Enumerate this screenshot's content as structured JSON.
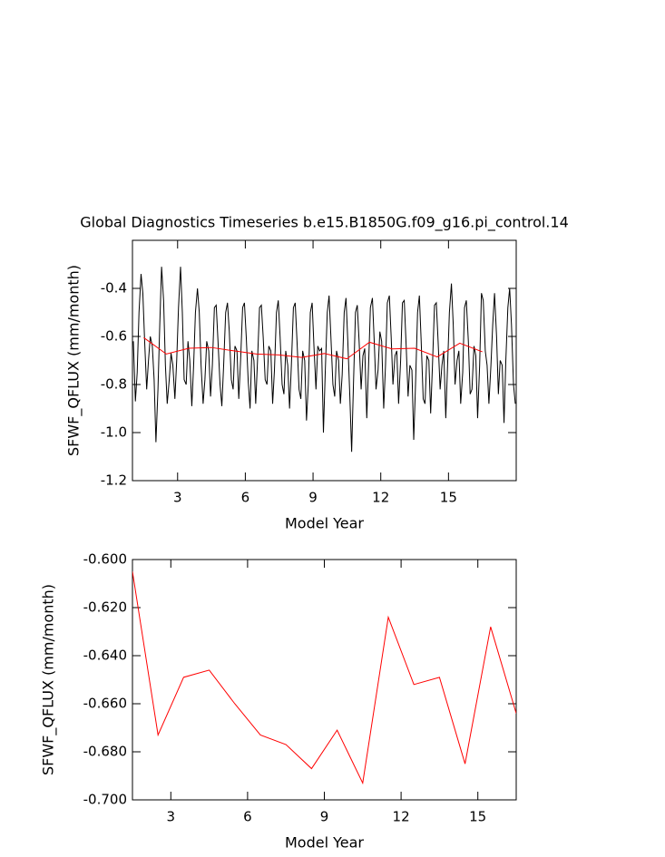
{
  "chart_data": [
    {
      "type": "line",
      "title": "Global Diagnostics Timeseries b.e15.B1850G.f09_g16.pi_control.14",
      "xlabel": "Model Year",
      "ylabel": "SFWF_QFLUX (mm/month)",
      "xlim": [
        1,
        18
      ],
      "ylim": [
        -1.2,
        -0.2
      ],
      "xticks": [
        3,
        6,
        9,
        12,
        15
      ],
      "yticks": [
        -1.2,
        {
          "value": -1,
          "label": "-1.0"
        },
        -0.8,
        -0.6,
        -0.4
      ],
      "series": [
        {
          "color": "#000000",
          "x": [
            1.04,
            1.13,
            1.21,
            1.29,
            1.38,
            1.46,
            1.54,
            1.63,
            1.71,
            1.79,
            1.88,
            1.96,
            2.04,
            2.13,
            2.21,
            2.29,
            2.38,
            2.46,
            2.54,
            2.63,
            2.71,
            2.79,
            2.88,
            2.96,
            3.04,
            3.13,
            3.21,
            3.29,
            3.38,
            3.46,
            3.54,
            3.63,
            3.71,
            3.79,
            3.88,
            3.96,
            4.04,
            4.13,
            4.21,
            4.29,
            4.38,
            4.46,
            4.54,
            4.63,
            4.71,
            4.79,
            4.88,
            4.96,
            5.04,
            5.13,
            5.21,
            5.29,
            5.38,
            5.46,
            5.54,
            5.63,
            5.71,
            5.79,
            5.88,
            5.96,
            6.04,
            6.13,
            6.21,
            6.29,
            6.38,
            6.46,
            6.54,
            6.63,
            6.71,
            6.79,
            6.88,
            6.96,
            7.04,
            7.13,
            7.21,
            7.29,
            7.38,
            7.46,
            7.54,
            7.63,
            7.71,
            7.79,
            7.88,
            7.96,
            8.04,
            8.13,
            8.21,
            8.29,
            8.38,
            8.46,
            8.54,
            8.63,
            8.71,
            8.79,
            8.88,
            8.96,
            9.04,
            9.13,
            9.21,
            9.29,
            9.38,
            9.46,
            9.54,
            9.63,
            9.71,
            9.79,
            9.88,
            9.96,
            10.04,
            10.13,
            10.21,
            10.29,
            10.38,
            10.46,
            10.54,
            10.63,
            10.71,
            10.79,
            10.88,
            10.96,
            11.04,
            11.13,
            11.21,
            11.29,
            11.38,
            11.46,
            11.54,
            11.63,
            11.71,
            11.79,
            11.88,
            11.96,
            12.04,
            12.13,
            12.21,
            12.29,
            12.38,
            12.46,
            12.54,
            12.63,
            12.71,
            12.79,
            12.88,
            12.96,
            13.04,
            13.13,
            13.21,
            13.29,
            13.38,
            13.46,
            13.54,
            13.63,
            13.71,
            13.79,
            13.88,
            13.96,
            14.04,
            14.13,
            14.21,
            14.29,
            14.38,
            14.46,
            14.54,
            14.63,
            14.71,
            14.79,
            14.88,
            14.96,
            15.04,
            15.13,
            15.21,
            15.29,
            15.38,
            15.46,
            15.54,
            15.63,
            15.71,
            15.79,
            15.88,
            15.96,
            16.04,
            16.13,
            16.21,
            16.29,
            16.38,
            16.46,
            16.54,
            16.63,
            16.71,
            16.79,
            16.88,
            16.96,
            17.04,
            17.13,
            17.21,
            17.29,
            17.38,
            17.46,
            17.54,
            17.63,
            17.71,
            17.79,
            17.88,
            17.96
          ],
          "values": [
            -0.62,
            -0.87,
            -0.75,
            -0.5,
            -0.34,
            -0.42,
            -0.62,
            -0.82,
            -0.7,
            -0.6,
            -0.64,
            -0.78,
            -1.04,
            -0.82,
            -0.55,
            -0.31,
            -0.45,
            -0.72,
            -0.88,
            -0.78,
            -0.67,
            -0.72,
            -0.86,
            -0.7,
            -0.48,
            -0.31,
            -0.5,
            -0.78,
            -0.8,
            -0.62,
            -0.7,
            -0.89,
            -0.72,
            -0.5,
            -0.4,
            -0.5,
            -0.72,
            -0.88,
            -0.78,
            -0.62,
            -0.66,
            -0.85,
            -0.72,
            -0.48,
            -0.47,
            -0.62,
            -0.8,
            -0.89,
            -0.72,
            -0.5,
            -0.46,
            -0.58,
            -0.78,
            -0.82,
            -0.64,
            -0.66,
            -0.86,
            -0.7,
            -0.48,
            -0.46,
            -0.6,
            -0.79,
            -0.9,
            -0.66,
            -0.7,
            -0.88,
            -0.7,
            -0.48,
            -0.47,
            -0.6,
            -0.78,
            -0.8,
            -0.64,
            -0.66,
            -0.88,
            -0.74,
            -0.5,
            -0.45,
            -0.6,
            -0.8,
            -0.84,
            -0.66,
            -0.72,
            -0.9,
            -0.72,
            -0.48,
            -0.46,
            -0.62,
            -0.82,
            -0.86,
            -0.66,
            -0.7,
            -0.95,
            -0.8,
            -0.5,
            -0.46,
            -0.64,
            -0.82,
            -0.64,
            -0.66,
            -0.65,
            -1.0,
            -0.75,
            -0.5,
            -0.43,
            -0.6,
            -0.8,
            -0.85,
            -0.66,
            -0.7,
            -0.88,
            -0.76,
            -0.5,
            -0.44,
            -0.62,
            -0.85,
            -1.08,
            -0.8,
            -0.5,
            -0.47,
            -0.62,
            -0.82,
            -0.68,
            -0.65,
            -0.94,
            -0.72,
            -0.48,
            -0.44,
            -0.62,
            -0.82,
            -0.74,
            -0.58,
            -0.62,
            -0.9,
            -0.72,
            -0.46,
            -0.43,
            -0.6,
            -0.8,
            -0.68,
            -0.66,
            -0.88,
            -0.7,
            -0.46,
            -0.45,
            -0.65,
            -0.85,
            -0.72,
            -0.74,
            -1.03,
            -0.8,
            -0.5,
            -0.43,
            -0.62,
            -0.86,
            -0.88,
            -0.68,
            -0.7,
            -0.92,
            -0.72,
            -0.47,
            -0.46,
            -0.62,
            -0.82,
            -0.72,
            -0.66,
            -0.94,
            -0.72,
            -0.5,
            -0.38,
            -0.55,
            -0.8,
            -0.7,
            -0.66,
            -0.88,
            -0.75,
            -0.48,
            -0.45,
            -0.62,
            -0.84,
            -0.82,
            -0.64,
            -0.68,
            -0.94,
            -0.72,
            -0.42,
            -0.45,
            -0.66,
            -0.72,
            -0.88,
            -0.72,
            -0.55,
            -0.42,
            -0.6,
            -0.84,
            -0.7,
            -0.72,
            -0.96,
            -0.7,
            -0.48,
            -0.4,
            -0.55,
            -0.8,
            -0.88
          ]
        },
        {
          "color": "#ff0000",
          "x": [
            1.5,
            2.5,
            3.5,
            4.5,
            5.5,
            6.5,
            7.5,
            8.5,
            9.5,
            10.5,
            11.5,
            12.5,
            13.5,
            14.5,
            15.5,
            16.5
          ],
          "values": [
            -0.605,
            -0.673,
            -0.649,
            -0.646,
            -0.66,
            -0.673,
            -0.677,
            -0.687,
            -0.671,
            -0.693,
            -0.624,
            -0.652,
            -0.649,
            -0.685,
            -0.628,
            -0.664
          ]
        }
      ]
    },
    {
      "type": "line",
      "xlabel": "Model Year",
      "ylabel": "SFWF_QFLUX (mm/month)",
      "xlim": [
        1.5,
        16.5
      ],
      "ylim": [
        -0.7,
        -0.6
      ],
      "xticks": [
        3,
        6,
        9,
        12,
        15
      ],
      "yticks": [
        {
          "value": -0.7,
          "label": "-0.700"
        },
        {
          "value": -0.68,
          "label": "-0.680"
        },
        {
          "value": -0.66,
          "label": "-0.660"
        },
        {
          "value": -0.64,
          "label": "-0.640"
        },
        {
          "value": -0.62,
          "label": "-0.620"
        },
        {
          "value": -0.6,
          "label": "-0.600"
        }
      ],
      "series": [
        {
          "color": "#ff0000",
          "x": [
            1.5,
            2.5,
            3.5,
            4.5,
            5.5,
            6.5,
            7.5,
            8.5,
            9.5,
            10.5,
            11.5,
            12.5,
            13.5,
            14.5,
            15.5,
            16.5
          ],
          "values": [
            -0.605,
            -0.673,
            -0.649,
            -0.646,
            -0.66,
            -0.673,
            -0.677,
            -0.687,
            -0.671,
            -0.693,
            -0.624,
            -0.652,
            -0.649,
            -0.685,
            -0.628,
            -0.664
          ]
        }
      ]
    }
  ]
}
